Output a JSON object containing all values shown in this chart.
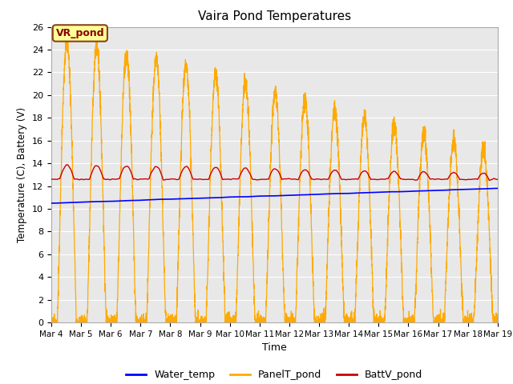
{
  "title": "Vaira Pond Temperatures",
  "xlabel": "Time",
  "ylabel": "Temperature (C), Battery (V)",
  "ylim": [
    0,
    26
  ],
  "duration_days": 15,
  "x_tick_labels": [
    "Mar 4",
    "Mar 5",
    "Mar 6",
    "Mar 7",
    "Mar 8",
    "Mar 9",
    "Mar 10",
    "Mar 11",
    "Mar 12",
    "Mar 13",
    "Mar 14",
    "Mar 15",
    "Mar 16",
    "Mar 17",
    "Mar 18",
    "Mar 19"
  ],
  "annotation_text": "VR_pond",
  "water_color": "#0000ff",
  "panel_color": "#ffaa00",
  "batt_color": "#cc0000",
  "bg_color": "#e8e8e8",
  "grid_color": "#ffffff",
  "legend_labels": [
    "Water_temp",
    "PanelT_pond",
    "BattV_pond"
  ],
  "n_points": 3600
}
